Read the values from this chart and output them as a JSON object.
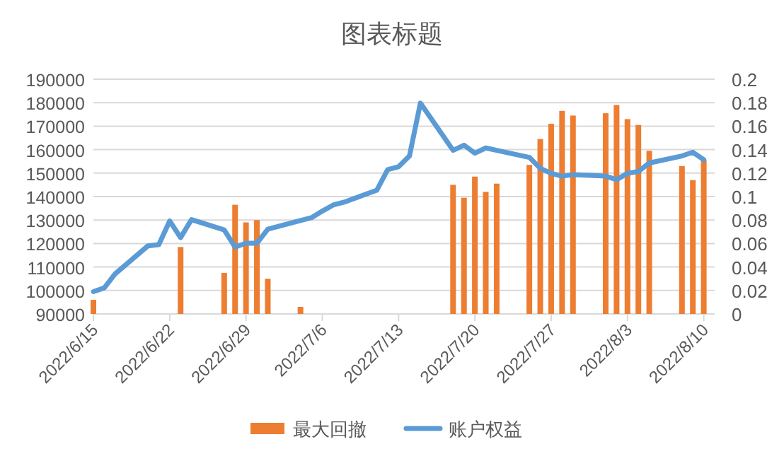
{
  "chart_data": {
    "type": "bar",
    "title": "图表标题",
    "xlim": [
      "2022-06-15",
      "2022-08-11"
    ],
    "xticks": [
      {
        "value": "2022-06-15",
        "label": "2022/6/15"
      },
      {
        "value": "2022-06-22",
        "label": "2022/6/22"
      },
      {
        "value": "2022-06-29",
        "label": "2022/6/29"
      },
      {
        "value": "2022-07-06",
        "label": "2022/7/6"
      },
      {
        "value": "2022-07-13",
        "label": "2022/7/13"
      },
      {
        "value": "2022-07-20",
        "label": "2022/7/20"
      },
      {
        "value": "2022-07-27",
        "label": "2022/7/27"
      },
      {
        "value": "2022-08-03",
        "label": "2022/8/3"
      },
      {
        "value": "2022-08-10",
        "label": "2022/8/10"
      }
    ],
    "ylim": [
      90000,
      190000
    ],
    "yticks": [
      90000,
      100000,
      110000,
      120000,
      130000,
      140000,
      150000,
      160000,
      170000,
      180000,
      190000
    ],
    "y2lim": [
      0,
      0.2
    ],
    "y2ticks": [
      0,
      0.02,
      0.04,
      0.06,
      0.08,
      0.1,
      0.12,
      0.14,
      0.16,
      0.18,
      0.2
    ],
    "grid": "y",
    "legend": "bottom",
    "marker": "none",
    "line_style": "solid",
    "series": [
      {
        "name": "最大回撤",
        "axis": "y2",
        "color": "#ed7d31",
        "x": [
          "2022-06-15",
          "2022-06-23",
          "2022-06-27",
          "2022-06-28",
          "2022-06-29",
          "2022-06-30",
          "2022-07-01",
          "2022-07-04",
          "2022-07-18",
          "2022-07-19",
          "2022-07-20",
          "2022-07-21",
          "2022-07-22",
          "2022-07-25",
          "2022-07-26",
          "2022-07-27",
          "2022-07-28",
          "2022-07-29",
          "2022-08-01",
          "2022-08-02",
          "2022-08-03",
          "2022-08-04",
          "2022-08-05",
          "2022-08-08",
          "2022-08-09",
          "2022-08-10"
        ],
        "values": [
          0.012,
          0.057,
          0.035,
          0.093,
          0.078,
          0.08,
          0.03,
          0.006,
          0.11,
          0.099,
          0.117,
          0.104,
          0.111,
          0.127,
          0.149,
          0.162,
          0.173,
          0.169,
          0.171,
          0.178,
          0.166,
          0.161,
          0.139,
          0.126,
          0.114,
          0.131
        ]
      },
      {
        "name": "账户权益",
        "type": "line",
        "color": "#5b9bd5",
        "x": [
          "2022-06-15",
          "2022-06-16",
          "2022-06-17",
          "2022-06-20",
          "2022-06-21",
          "2022-06-22",
          "2022-06-23",
          "2022-06-24",
          "2022-06-27",
          "2022-06-28",
          "2022-06-29",
          "2022-06-30",
          "2022-07-01",
          "2022-07-04",
          "2022-07-05",
          "2022-07-06",
          "2022-07-07",
          "2022-07-08",
          "2022-07-11",
          "2022-07-12",
          "2022-07-13",
          "2022-07-14",
          "2022-07-15",
          "2022-07-18",
          "2022-07-19",
          "2022-07-20",
          "2022-07-21",
          "2022-07-22",
          "2022-07-25",
          "2022-07-26",
          "2022-07-27",
          "2022-07-28",
          "2022-07-29",
          "2022-08-01",
          "2022-08-02",
          "2022-08-03",
          "2022-08-04",
          "2022-08-05",
          "2022-08-08",
          "2022-08-09",
          "2022-08-10"
        ],
        "values": [
          99500,
          101100,
          107100,
          119000,
          119500,
          129600,
          122500,
          130200,
          125800,
          118500,
          120100,
          120100,
          126100,
          129800,
          131000,
          133800,
          136400,
          137600,
          142700,
          151500,
          152700,
          157300,
          179800,
          159700,
          161900,
          158500,
          160700,
          159700,
          156700,
          152000,
          149900,
          148700,
          149300,
          148700,
          147200,
          149900,
          150700,
          154300,
          157300,
          158900,
          155700
        ]
      }
    ]
  }
}
